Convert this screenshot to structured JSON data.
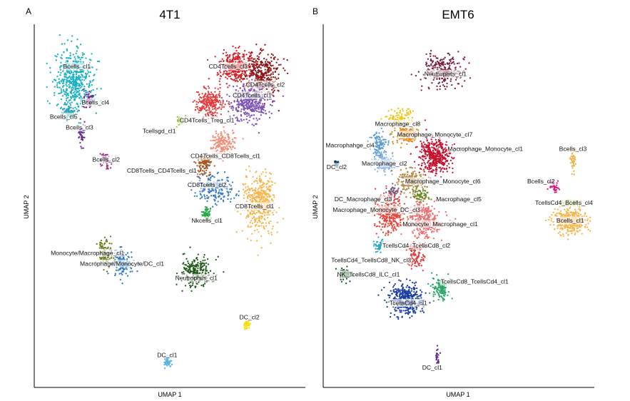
{
  "chart_data": [
    {
      "type": "scatter",
      "panel": "A",
      "title": "4T1",
      "xlabel": "UMAP 1",
      "ylabel": "UMAP 2",
      "xlim": [
        0,
        100
      ],
      "ylim": [
        0,
        100
      ],
      "clusters": [
        {
          "name": "Bcells_cl1",
          "color": "#17b1c2",
          "x": 14,
          "y": 85,
          "spread": [
            5.5,
            6.5
          ],
          "count": 520
        },
        {
          "name": "Bcells_cl4",
          "color": "#7a2a8c",
          "x": 19.5,
          "y": 79.5,
          "spread": [
            1.5,
            1.5
          ],
          "count": 50
        },
        {
          "name": "Bcells_cl5",
          "color": "#2aa5b8",
          "x": 12,
          "y": 76.5,
          "spread": [
            2.5,
            1.5
          ],
          "count": 70
        },
        {
          "name": "Bcells_cl3",
          "color": "#6b2c91",
          "x": 17,
          "y": 70,
          "spread": [
            1.2,
            3
          ],
          "count": 45
        },
        {
          "name": "Bcells_cl2",
          "color": "#9b2f7e",
          "x": 26,
          "y": 63,
          "spread": [
            2,
            2
          ],
          "count": 55
        },
        {
          "name": "CD4Tcells_cl3",
          "color": "#d62028",
          "x": 75,
          "y": 89,
          "spread": [
            5,
            3.5
          ],
          "count": 330
        },
        {
          "name": "CD4Tcells_cl2",
          "color": "#8b1414",
          "x": 85,
          "y": 87,
          "spread": [
            5,
            5
          ],
          "count": 330
        },
        {
          "name": "CD4Tcells_cl1",
          "color": "#7b52b5",
          "x": 80,
          "y": 79,
          "spread": [
            6,
            4
          ],
          "count": 380
        },
        {
          "name": "CD4Tcells_Treg_cl1",
          "color": "#e53a3a",
          "x": 65,
          "y": 79,
          "spread": [
            4,
            3
          ],
          "count": 240
        },
        {
          "name": "Tcellsgd_cl1",
          "color": "#9ac234",
          "x": 54,
          "y": 74,
          "spread": [
            1,
            1
          ],
          "count": 35
        },
        {
          "name": "CD4Tcells_CD8Tcells_cl1",
          "color": "#f28e78",
          "x": 70,
          "y": 68,
          "spread": [
            3.5,
            3
          ],
          "count": 170
        },
        {
          "name": "CD8Tcells_CD4Tcells_cl1",
          "color": "#a8561f",
          "x": 63,
          "y": 61.5,
          "spread": [
            2.5,
            2.5
          ],
          "count": 110
        },
        {
          "name": "CD8Tcells_cl2",
          "color": "#3a7bc8",
          "x": 67,
          "y": 55,
          "spread": [
            6,
            3
          ],
          "count": 200
        },
        {
          "name": "CD8Tcells_cl1",
          "color": "#f6b64e",
          "x": 84,
          "y": 51,
          "spread": [
            4.5,
            7
          ],
          "count": 440
        },
        {
          "name": "Nkcells_cl1",
          "color": "#2aa84a",
          "x": 64,
          "y": 48,
          "spread": [
            1.5,
            1.5
          ],
          "count": 60
        },
        {
          "name": "Monocyte/Macrophage_cl1",
          "color": "#6e7a1c",
          "x": 26,
          "y": 37,
          "spread": [
            2.5,
            3.5
          ],
          "count": 100
        },
        {
          "name": "Macrophage/Monocyte/DC_cl1",
          "color": "#2878c6",
          "x": 32,
          "y": 34.5,
          "spread": [
            3,
            3
          ],
          "count": 140
        },
        {
          "name": "Neutrophils_cl1",
          "color": "#1f5a1a",
          "x": 60,
          "y": 31.5,
          "spread": [
            4.5,
            3.5
          ],
          "count": 230
        },
        {
          "name": "DC_cl2",
          "color": "#f2e00c",
          "x": 79,
          "y": 17,
          "spread": [
            1,
            0.8
          ],
          "count": 45
        },
        {
          "name": "DC_cl1",
          "color": "#5ab7e0",
          "x": 49,
          "y": 6.5,
          "spread": [
            1.2,
            1.2
          ],
          "count": 55
        }
      ]
    },
    {
      "type": "scatter",
      "panel": "B",
      "title": "EMT6",
      "xlabel": "UMAP 1",
      "ylabel": "UMAP 2",
      "xlim": [
        0,
        100
      ],
      "ylim": [
        0,
        100
      ],
      "clusters": [
        {
          "name": "Neutrophils_cl1",
          "color": "#7a1f3a",
          "x": 44,
          "y": 88,
          "spread": [
            6,
            3.5
          ],
          "count": 250
        },
        {
          "name": "Macrophage_cl8",
          "color": "#f1c40f",
          "x": 28,
          "y": 75,
          "spread": [
            4,
            1.8
          ],
          "count": 80
        },
        {
          "name": "Macrophahge_cl4",
          "color": "#5b9bd5",
          "x": 20,
          "y": 67,
          "spread": [
            2.5,
            3
          ],
          "count": 120
        },
        {
          "name": "Macrophage_Monocyte_cl7",
          "color": "#e08a1e",
          "x": 30,
          "y": 70,
          "spread": [
            4,
            2
          ],
          "count": 150
        },
        {
          "name": "Macrophage_Monocyte_cl1",
          "color": "#c4122e",
          "x": 41,
          "y": 64,
          "spread": [
            5,
            4
          ],
          "count": 420
        },
        {
          "name": "DC_cl2",
          "color": "#0b3a5e",
          "x": 4,
          "y": 62,
          "spread": [
            0.6,
            0.8
          ],
          "count": 28
        },
        {
          "name": "Macrophage_cl2",
          "color": "#8db3e8",
          "x": 22,
          "y": 62,
          "spread": [
            3,
            2
          ],
          "count": 140
        },
        {
          "name": "Macrophage_Monocyte_cl6",
          "color": "#b08a46",
          "x": 32,
          "y": 57,
          "spread": [
            4,
            2.5
          ],
          "count": 190
        },
        {
          "name": "Macrophage_cl5",
          "color": "#6e8a2a",
          "x": 36,
          "y": 53,
          "spread": [
            3,
            1.5
          ],
          "count": 70
        },
        {
          "name": "DC_Macrophage_cl3",
          "color": "#7a5a7a",
          "x": 25,
          "y": 54,
          "spread": [
            2,
            1.5
          ],
          "count": 50
        },
        {
          "name": "Macrophage_Monocyte_DC_cl3",
          "color": "#e8453a",
          "x": 24,
          "y": 48,
          "spread": [
            4.5,
            4
          ],
          "count": 300
        },
        {
          "name": "Monocyte_Macrophage_cl1",
          "color": "#ee6e6e",
          "x": 37,
          "y": 46,
          "spread": [
            5,
            4
          ],
          "count": 310
        },
        {
          "name": "Bcells_cl3",
          "color": "#f0b34a",
          "x": 93,
          "y": 63,
          "spread": [
            0.8,
            3
          ],
          "count": 45
        },
        {
          "name": "Bcells_cl2",
          "color": "#d91a87",
          "x": 86,
          "y": 55,
          "spread": [
            1.5,
            1.5
          ],
          "count": 40
        },
        {
          "name": "TcellsCd4_Bcells_cl4",
          "color": "#9ac234",
          "x": 92,
          "y": 51,
          "spread": [
            3,
            0.8
          ],
          "count": 40
        },
        {
          "name": "Bcells_cl1",
          "color": "#f6b64e",
          "x": 92,
          "y": 46,
          "spread": [
            5,
            3
          ],
          "count": 360
        },
        {
          "name": "TcellsCd4_TcellsCd8_cl2",
          "color": "#2aa5c8",
          "x": 20,
          "y": 39,
          "spread": [
            1.5,
            1.5
          ],
          "count": 40
        },
        {
          "name": "TcellsCd4_TcellsCd8_NK_cl3",
          "color": "#e53a3a",
          "x": 34,
          "y": 36,
          "spread": [
            3,
            3
          ],
          "count": 100
        },
        {
          "name": "NK_TcellsCd8_ILC_cl1",
          "color": "#1a5a2a",
          "x": 7,
          "y": 31,
          "spread": [
            2,
            1.5
          ],
          "count": 70
        },
        {
          "name": "TcellsCd8_TcellsCd4_cl1",
          "color": "#2aa66a",
          "x": 43,
          "y": 27,
          "spread": [
            2.5,
            2.5
          ],
          "count": 120
        },
        {
          "name": "TcellsCd4_cl1",
          "color": "#1b3fa0",
          "x": 30,
          "y": 24,
          "spread": [
            5,
            3.5
          ],
          "count": 360
        },
        {
          "name": "DC_cl1",
          "color": "#5a2a8a",
          "x": 42,
          "y": 8,
          "spread": [
            0.6,
            2
          ],
          "count": 22
        }
      ]
    }
  ],
  "panels": [
    {
      "letter": "A",
      "labels": [
        {
          "text": "Bcells_cl1",
          "x": 15,
          "y": 89
        },
        {
          "text": "Bcells_cl4",
          "x": 22,
          "y": 79
        },
        {
          "text": "Bcells_cl5",
          "x": 10,
          "y": 75
        },
        {
          "text": "Bcells_cl3",
          "x": 16,
          "y": 72
        },
        {
          "text": "Bcells_cl2",
          "x": 26,
          "y": 63
        },
        {
          "text": "CD4Tcells_cl3",
          "x": 72,
          "y": 89
        },
        {
          "text": "CD4Tcells_cl2",
          "x": 86,
          "y": 84
        },
        {
          "text": "CD4Tcells_cl1",
          "x": 81,
          "y": 81
        },
        {
          "text": "CD4Tcells_Treg_cl1",
          "x": 64,
          "y": 74
        },
        {
          "text": "Tcellsgd_cl1",
          "x": 46,
          "y": 71
        },
        {
          "text": "CD4Tcells_CD8Tcells_cl1",
          "x": 71,
          "y": 64
        },
        {
          "text": "CD8Tcells_CD4Tcells_cl1",
          "x": 47,
          "y": 60
        },
        {
          "text": "CD8Tcells_cl2",
          "x": 64,
          "y": 56
        },
        {
          "text": "CD8Tcells_cl1",
          "x": 82,
          "y": 50
        },
        {
          "text": "Nkcells_cl1",
          "x": 64,
          "y": 46
        },
        {
          "text": "Monocyte/Macrophage_cl1",
          "x": 19,
          "y": 37
        },
        {
          "text": "Macrophage/Monocyte/DC_cl1",
          "x": 32,
          "y": 34
        },
        {
          "text": "Neutrophils_cl1",
          "x": 60,
          "y": 30
        },
        {
          "text": "DC_cl2",
          "x": 80,
          "y": 19
        },
        {
          "text": "DC_cl1",
          "x": 49,
          "y": 8.5
        }
      ]
    },
    {
      "letter": "B",
      "labels": [
        {
          "text": "Neutrophils_cl1",
          "x": 45,
          "y": 87
        },
        {
          "text": "Macrophage_cl8",
          "x": 27,
          "y": 73
        },
        {
          "text": "Macrophahge_cl4",
          "x": 9,
          "y": 67
        },
        {
          "text": "Macrophage_Monocyte_cl7",
          "x": 41,
          "y": 70
        },
        {
          "text": "Macrophage_Monocyte_cl1",
          "x": 60,
          "y": 66
        },
        {
          "text": "DC_cl2",
          "x": 4,
          "y": 61
        },
        {
          "text": "Macrophage_cl2",
          "x": 22,
          "y": 62
        },
        {
          "text": "Macrophage_Monocyte_cl6",
          "x": 44,
          "y": 57
        },
        {
          "text": "DC_Macrophage_cl3",
          "x": 14,
          "y": 52
        },
        {
          "text": "Macrophage_cl5",
          "x": 50,
          "y": 52
        },
        {
          "text": "Macrophage_Monocyte_DC_cl3",
          "x": 19,
          "y": 49
        },
        {
          "text": "Monocyte_Macrophage_cl1",
          "x": 43,
          "y": 45
        },
        {
          "text": "Bcells_cl3",
          "x": 93,
          "y": 66
        },
        {
          "text": "Bcells_cl2",
          "x": 81,
          "y": 57
        },
        {
          "text": "TcellsCd4_Bcells_cl4",
          "x": 90,
          "y": 51
        },
        {
          "text": "Bcells_cl1",
          "x": 92,
          "y": 46
        },
        {
          "text": "TcellsCd4_TcellsCd8_cl2",
          "x": 34,
          "y": 39
        },
        {
          "text": "TcellsCd4_TcellsCd8_NK_cl3",
          "x": 17,
          "y": 35
        },
        {
          "text": "NK_TcellsCd8_ILC_cl1",
          "x": 16,
          "y": 31
        },
        {
          "text": "TcellsCd8_TcellsCd4_cl1",
          "x": 56,
          "y": 29
        },
        {
          "text": "TcellsCd4_cl1",
          "x": 31,
          "y": 23
        },
        {
          "text": "DC_cl1",
          "x": 40,
          "y": 5
        }
      ]
    }
  ]
}
